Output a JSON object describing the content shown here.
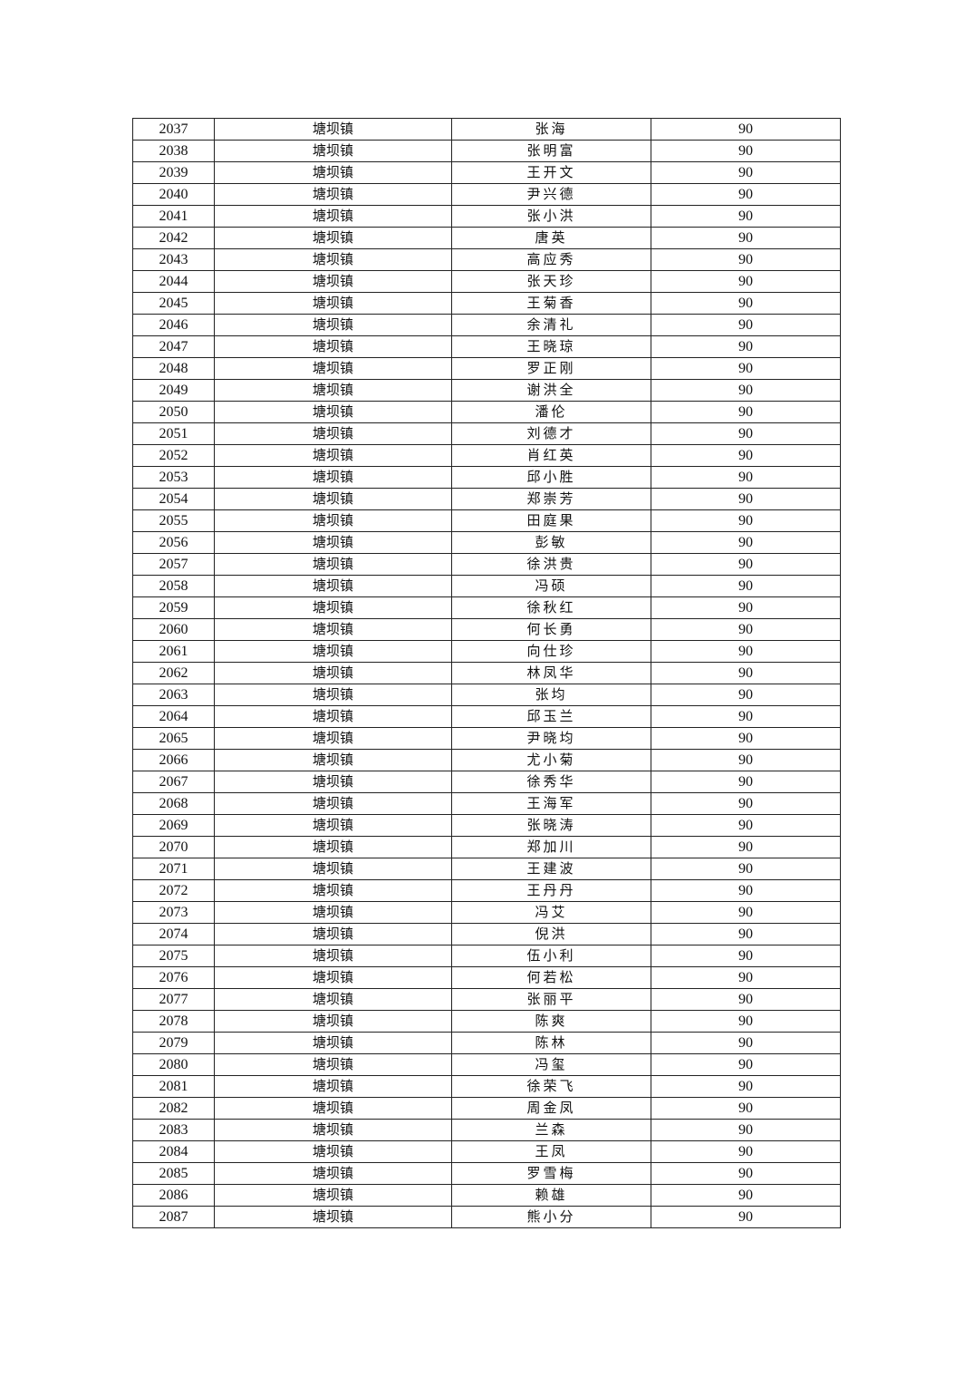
{
  "table": {
    "rows": [
      [
        "2037",
        "塘坝镇",
        "张海",
        "90"
      ],
      [
        "2038",
        "塘坝镇",
        "张明富",
        "90"
      ],
      [
        "2039",
        "塘坝镇",
        "王开文",
        "90"
      ],
      [
        "2040",
        "塘坝镇",
        "尹兴德",
        "90"
      ],
      [
        "2041",
        "塘坝镇",
        "张小洪",
        "90"
      ],
      [
        "2042",
        "塘坝镇",
        "唐英",
        "90"
      ],
      [
        "2043",
        "塘坝镇",
        "高应秀",
        "90"
      ],
      [
        "2044",
        "塘坝镇",
        "张天珍",
        "90"
      ],
      [
        "2045",
        "塘坝镇",
        "王菊香",
        "90"
      ],
      [
        "2046",
        "塘坝镇",
        "余清礼",
        "90"
      ],
      [
        "2047",
        "塘坝镇",
        "王晓琼",
        "90"
      ],
      [
        "2048",
        "塘坝镇",
        "罗正刚",
        "90"
      ],
      [
        "2049",
        "塘坝镇",
        "谢洪全",
        "90"
      ],
      [
        "2050",
        "塘坝镇",
        "潘伦",
        "90"
      ],
      [
        "2051",
        "塘坝镇",
        "刘德才",
        "90"
      ],
      [
        "2052",
        "塘坝镇",
        "肖红英",
        "90"
      ],
      [
        "2053",
        "塘坝镇",
        "邱小胜",
        "90"
      ],
      [
        "2054",
        "塘坝镇",
        "郑崇芳",
        "90"
      ],
      [
        "2055",
        "塘坝镇",
        "田庭果",
        "90"
      ],
      [
        "2056",
        "塘坝镇",
        "彭敏",
        "90"
      ],
      [
        "2057",
        "塘坝镇",
        "徐洪贵",
        "90"
      ],
      [
        "2058",
        "塘坝镇",
        "冯硕",
        "90"
      ],
      [
        "2059",
        "塘坝镇",
        "徐秋红",
        "90"
      ],
      [
        "2060",
        "塘坝镇",
        "何长勇",
        "90"
      ],
      [
        "2061",
        "塘坝镇",
        "向仕珍",
        "90"
      ],
      [
        "2062",
        "塘坝镇",
        "林凤华",
        "90"
      ],
      [
        "2063",
        "塘坝镇",
        "张均",
        "90"
      ],
      [
        "2064",
        "塘坝镇",
        "邱玉兰",
        "90"
      ],
      [
        "2065",
        "塘坝镇",
        "尹晓均",
        "90"
      ],
      [
        "2066",
        "塘坝镇",
        "尤小菊",
        "90"
      ],
      [
        "2067",
        "塘坝镇",
        "徐秀华",
        "90"
      ],
      [
        "2068",
        "塘坝镇",
        "王海军",
        "90"
      ],
      [
        "2069",
        "塘坝镇",
        "张晓涛",
        "90"
      ],
      [
        "2070",
        "塘坝镇",
        "郑加川",
        "90"
      ],
      [
        "2071",
        "塘坝镇",
        "王建波",
        "90"
      ],
      [
        "2072",
        "塘坝镇",
        "王丹丹",
        "90"
      ],
      [
        "2073",
        "塘坝镇",
        "冯艾",
        "90"
      ],
      [
        "2074",
        "塘坝镇",
        "倪洪",
        "90"
      ],
      [
        "2075",
        "塘坝镇",
        "伍小利",
        "90"
      ],
      [
        "2076",
        "塘坝镇",
        "何若松",
        "90"
      ],
      [
        "2077",
        "塘坝镇",
        "张丽平",
        "90"
      ],
      [
        "2078",
        "塘坝镇",
        "陈爽",
        "90"
      ],
      [
        "2079",
        "塘坝镇",
        "陈林",
        "90"
      ],
      [
        "2080",
        "塘坝镇",
        "冯玺",
        "90"
      ],
      [
        "2081",
        "塘坝镇",
        "徐荣飞",
        "90"
      ],
      [
        "2082",
        "塘坝镇",
        "周金凤",
        "90"
      ],
      [
        "2083",
        "塘坝镇",
        "兰森",
        "90"
      ],
      [
        "2084",
        "塘坝镇",
        "王凤",
        "90"
      ],
      [
        "2085",
        "塘坝镇",
        "罗雪梅",
        "90"
      ],
      [
        "2086",
        "塘坝镇",
        "赖雄",
        "90"
      ],
      [
        "2087",
        "塘坝镇",
        "熊小分",
        "90"
      ]
    ]
  }
}
